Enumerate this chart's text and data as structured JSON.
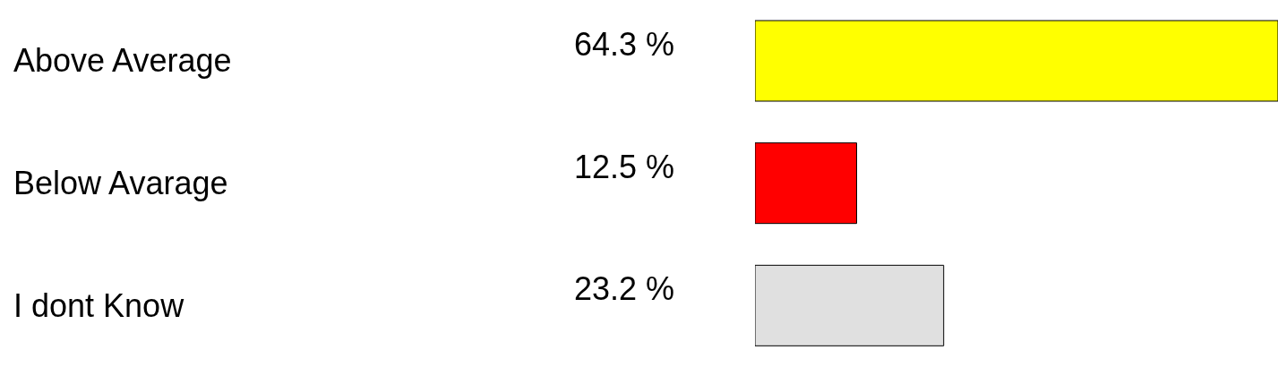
{
  "chart_data": {
    "type": "bar",
    "orientation": "horizontal",
    "categories": [
      "Above Average",
      "Below Avarage",
      "I dont Know"
    ],
    "values": [
      64.3,
      12.5,
      23.2
    ],
    "value_labels": [
      "64.3 %",
      "12.5 %",
      "23.2 %"
    ],
    "colors": [
      "#ffff00",
      "#ff0000",
      "#e0e0e0"
    ]
  }
}
